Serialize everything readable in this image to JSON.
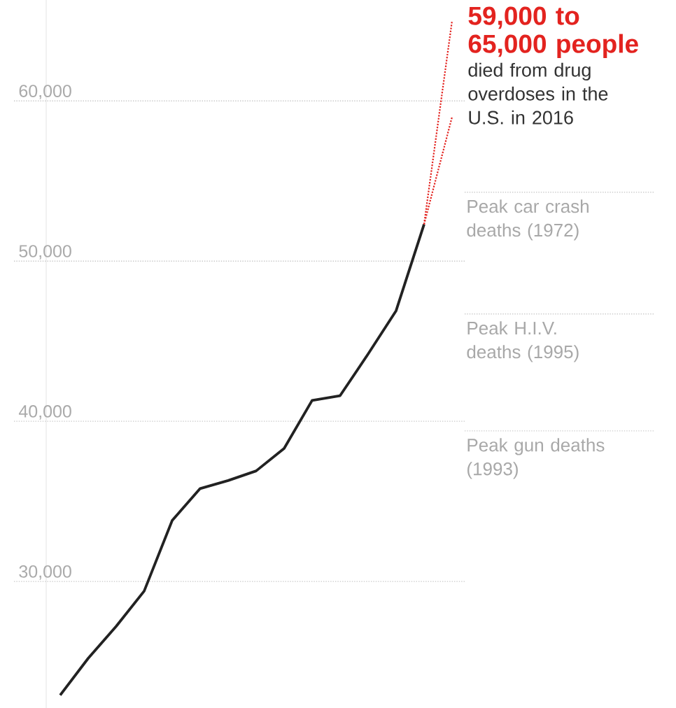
{
  "chart_data": {
    "type": "line",
    "categories": [
      null,
      null,
      null,
      null,
      null,
      null,
      null,
      null,
      null,
      null,
      null,
      null,
      null,
      null,
      null
    ],
    "series": [
      {
        "color": "#222222",
        "line_style": "solid",
        "values": [
          22900,
          25200,
          27200,
          29400,
          33800,
          35800,
          36300,
          36900,
          38300,
          41300,
          41600,
          44200,
          46900,
          52300,
          null
        ]
      },
      {
        "color": "#e3231f",
        "line_style": "dotted",
        "values": [
          null,
          null,
          null,
          null,
          null,
          null,
          null,
          null,
          null,
          null,
          null,
          null,
          null,
          52300,
          59000
        ]
      },
      {
        "color": "#e3231f",
        "line_style": "dotted",
        "values": [
          null,
          null,
          null,
          null,
          null,
          null,
          null,
          null,
          null,
          null,
          null,
          null,
          null,
          52300,
          65000
        ]
      }
    ],
    "ylim": [
      22100,
      66300
    ],
    "yticks": [
      {
        "value": 30000,
        "label": "30,000"
      },
      {
        "value": 40000,
        "label": "40,000"
      },
      {
        "value": 50000,
        "label": "50,000"
      },
      {
        "value": 60000,
        "label": "60,000"
      }
    ],
    "grid": "y",
    "ref_lines": [
      {
        "axis": "y",
        "value": 54300,
        "label": "Peak car crash deaths (1972)",
        "color": "#cccccc",
        "line_style": "dotted"
      },
      {
        "axis": "y",
        "value": 46700,
        "label": "Peak H.I.V. deaths (1995)",
        "color": "#cccccc",
        "line_style": "dotted"
      },
      {
        "axis": "y",
        "value": 39400,
        "label": "Peak gun deaths (1993)",
        "color": "#cccccc",
        "line_style": "dotted"
      }
    ],
    "annotations": [
      "59,000 to 65,000 people",
      "died from drug overdoses in the U.S. in 2016"
    ]
  }
}
